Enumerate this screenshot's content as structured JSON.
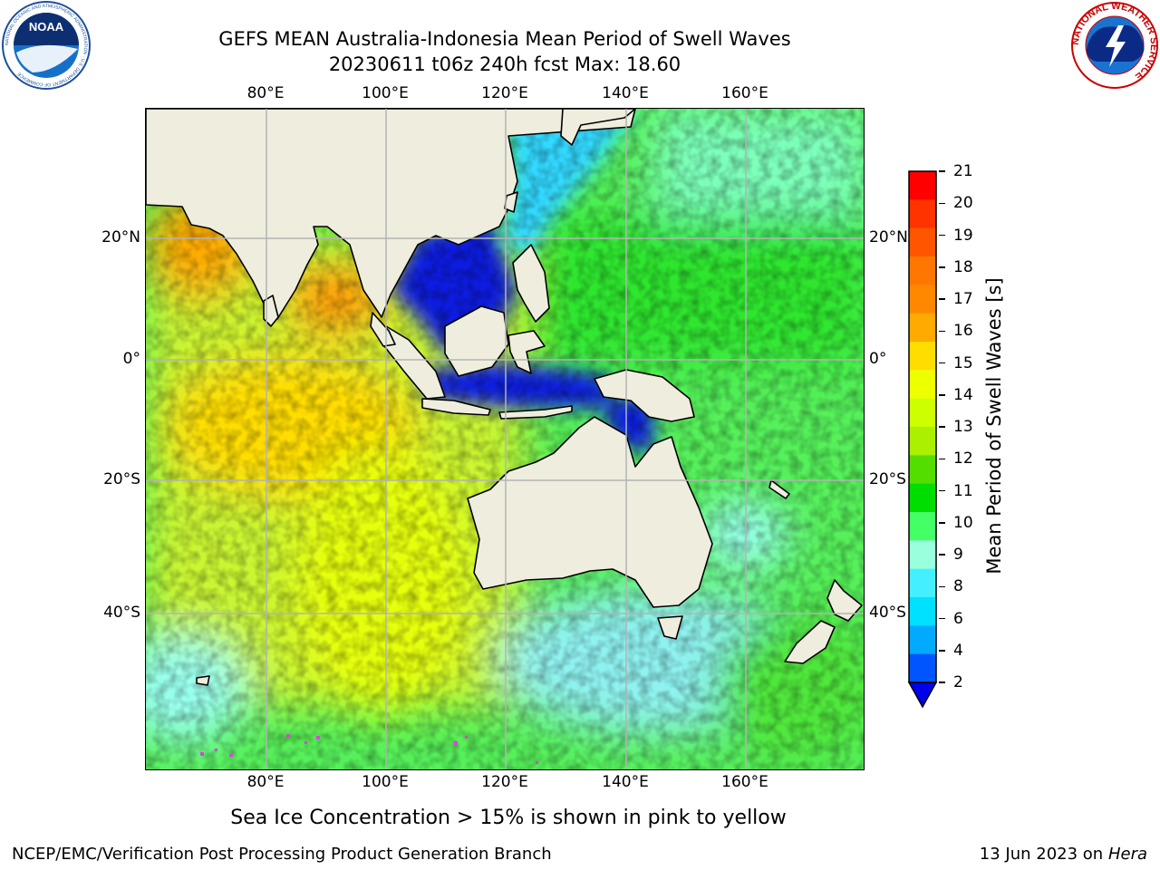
{
  "header": {
    "title_line1": "GEFS MEAN Australia-Indonesia Mean Period of Swell Waves",
    "title_line2": "20230611 t06z 240h fcst   Max: 18.60"
  },
  "logos": {
    "noaa": {
      "text": "NOAA",
      "ring_text": "NATIONAL OCEANIC AND ATMOSPHERIC ADMINISTRATION · U.S. DEPARTMENT OF COMMERCE"
    },
    "nws": {
      "ring_text": "NATIONAL WEATHER SERVICE"
    }
  },
  "map": {
    "lon_range": [
      60,
      180
    ],
    "lat_range": [
      -69,
      40
    ],
    "grid": true,
    "lon_ticks": [
      "80°E",
      "100°E",
      "120°E",
      "140°E",
      "160°E"
    ],
    "lat_ticks": [
      "20°N",
      "0°",
      "20°S",
      "40°S"
    ],
    "land_color": "#efedde",
    "ocean_base_color": "#55f05a"
  },
  "colorbar": {
    "label": "Mean Period of Swell Waves [s]",
    "ticks": [
      "21",
      "20",
      "19",
      "18",
      "17",
      "16",
      "15",
      "14",
      "13",
      "12",
      "11",
      "10",
      "9",
      "8",
      "6",
      "4",
      "2"
    ],
    "colors": [
      "#ff0000",
      "#ff3300",
      "#ff5500",
      "#ff7700",
      "#ff8800",
      "#ffaa00",
      "#ffdd00",
      "#eeff00",
      "#ccff00",
      "#aaf000",
      "#55dd00",
      "#00dd00",
      "#44ff66",
      "#99ffdd",
      "#44f0ff",
      "#00e0ff",
      "#00aaff",
      "#0055ff"
    ],
    "extend_color": "#0000ee"
  },
  "footer": {
    "ice_note": "Sea Ice Concentration > 15% is shown in pink to yellow",
    "credit": "NCEP/EMC/Verification Post Processing Product Generation Branch",
    "date": "13 Jun 2023 on",
    "host": "Hera"
  }
}
